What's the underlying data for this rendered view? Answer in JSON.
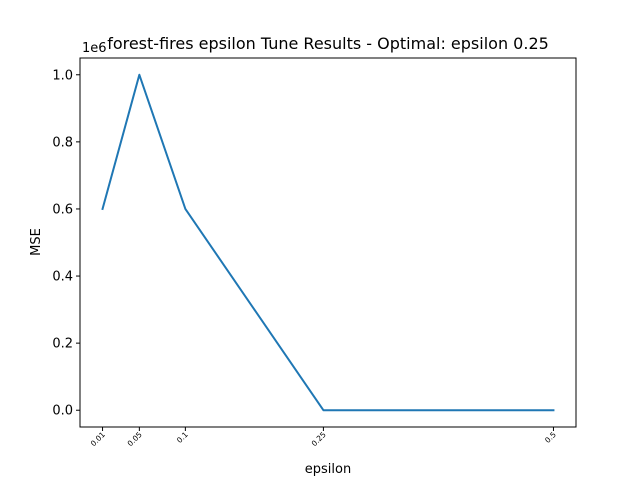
{
  "chart_data": {
    "type": "line",
    "title": "forest-fires epsilon Tune Results - Optimal: epsilon 0.25",
    "xlabel": "epsilon",
    "ylabel": "MSE",
    "offset_label": "1e6",
    "x": [
      0.01,
      0.05,
      0.1,
      0.25,
      0.5
    ],
    "x_tick_labels": [
      "0.01",
      "0.05",
      "0.1",
      "0.25",
      "0.5"
    ],
    "series": [
      {
        "values": [
          0.6,
          1.0,
          0.6,
          0.0,
          0.0
        ],
        "color": "#1f77b4"
      }
    ],
    "y_ticks": [
      0.0,
      0.2,
      0.4,
      0.6,
      0.8,
      1.0
    ],
    "y_tick_labels": [
      "0.0",
      "0.2",
      "0.4",
      "0.6",
      "0.8",
      "1.0"
    ],
    "xlim": [
      -0.0145,
      0.5245
    ],
    "ylim": [
      -0.05,
      1.05
    ],
    "grid": false
  }
}
